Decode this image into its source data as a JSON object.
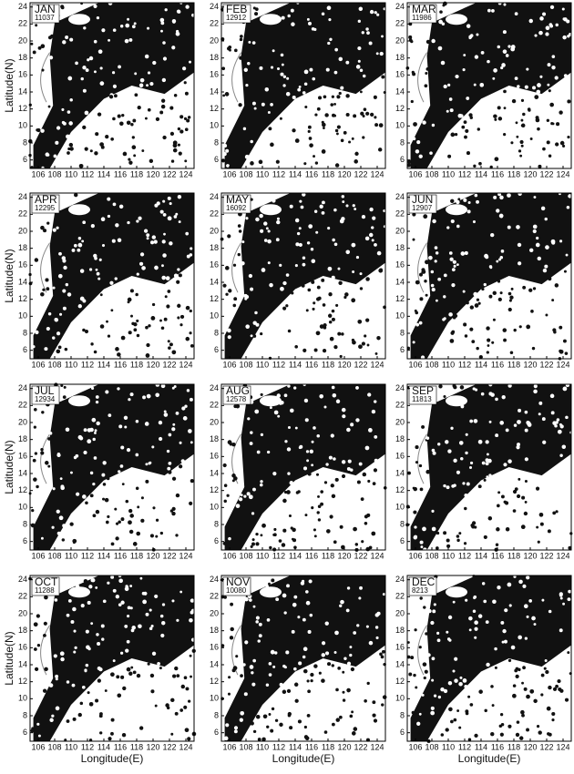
{
  "chart_data": {
    "type": "map",
    "panels": [
      {
        "month": "JAN",
        "count": 11037
      },
      {
        "month": "FEB",
        "count": 12912
      },
      {
        "month": "MAR",
        "count": 11986
      },
      {
        "month": "APR",
        "count": 12295
      },
      {
        "month": "MAY",
        "count": 16092
      },
      {
        "month": "JUN",
        "count": 12907
      },
      {
        "month": "JUL",
        "count": 12934
      },
      {
        "month": "AUG",
        "count": 12578
      },
      {
        "month": "SEP",
        "count": 11813
      },
      {
        "month": "OCT",
        "count": 11288
      },
      {
        "month": "NOV",
        "count": 10080
      },
      {
        "month": "DEC",
        "count": 8213
      }
    ],
    "xlabel": "Longitude(E)",
    "ylabel": "Latitude(N)",
    "xlim": [
      105,
      125
    ],
    "ylim": [
      5,
      24.5
    ],
    "xticks": [
      106,
      108,
      110,
      112,
      114,
      116,
      118,
      120,
      122,
      124
    ],
    "yticks": [
      6,
      8,
      10,
      12,
      14,
      16,
      18,
      20,
      22,
      24
    ]
  }
}
